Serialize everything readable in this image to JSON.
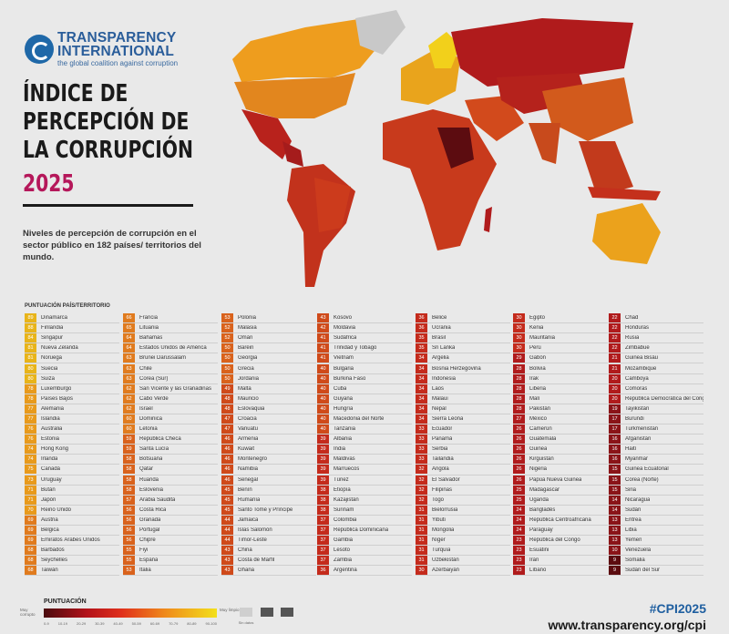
{
  "logo": {
    "line1": "TRANSPARENCY",
    "line2": "INTERNATIONAL",
    "tagline": "the global coalition against corruption"
  },
  "title": {
    "lines": [
      "ÍNDICE DE",
      "PERCEPCIÓN DE",
      "LA CORRUPCIÓN"
    ],
    "year": "2025"
  },
  "subtitle": "Niveles de percepción de corrupción en el sector público en 182 países/ territorios del mundo.",
  "table_header": "PUNTUACIÓN PAÍS/TERRITORIO",
  "columns": [
    [
      [
        89,
        "Dinamarca"
      ],
      [
        88,
        "Finlandia"
      ],
      [
        84,
        "Singapur"
      ],
      [
        81,
        "Nueva Zelanda"
      ],
      [
        81,
        "Noruega"
      ],
      [
        80,
        "Suecia"
      ],
      [
        80,
        "Suiza"
      ],
      [
        78,
        "Luxemburgo"
      ],
      [
        78,
        "Países Bajos"
      ],
      [
        77,
        "Alemania"
      ],
      [
        77,
        "Islandia"
      ],
      [
        76,
        "Australia"
      ],
      [
        76,
        "Estonia"
      ],
      [
        74,
        "Hong Kong"
      ],
      [
        74,
        "Irlanda"
      ],
      [
        75,
        "Canadá"
      ],
      [
        73,
        "Uruguay"
      ],
      [
        71,
        "Bután"
      ],
      [
        71,
        "Japón"
      ],
      [
        70,
        "Reino Unido"
      ],
      [
        69,
        "Austria"
      ],
      [
        69,
        "Bélgica"
      ],
      [
        69,
        "Emiratos Árabes Unidos"
      ],
      [
        68,
        "Barbados"
      ],
      [
        68,
        "Seychelles"
      ],
      [
        68,
        "Taiwán"
      ]
    ],
    [
      [
        66,
        "Francia"
      ],
      [
        65,
        "Lituania"
      ],
      [
        64,
        "Bahamas"
      ],
      [
        64,
        "Estados Unidos de América"
      ],
      [
        63,
        "Brunei Darussalam"
      ],
      [
        63,
        "Chile"
      ],
      [
        63,
        "Corea (Sur)"
      ],
      [
        62,
        "San Vicente y las Granadinas"
      ],
      [
        62,
        "Cabo Verde"
      ],
      [
        62,
        "Israel"
      ],
      [
        60,
        "Dominica"
      ],
      [
        60,
        "Letonia"
      ],
      [
        59,
        "República Checa"
      ],
      [
        59,
        "Santa Lucía"
      ],
      [
        58,
        "Botsuana"
      ],
      [
        58,
        "Qatar"
      ],
      [
        58,
        "Ruanda"
      ],
      [
        58,
        "Eslovenia"
      ],
      [
        57,
        "Arabia Saudita"
      ],
      [
        56,
        "Costa Rica"
      ],
      [
        56,
        "Granada"
      ],
      [
        56,
        "Portugal"
      ],
      [
        56,
        "Chipre"
      ],
      [
        55,
        "Fiyi"
      ],
      [
        55,
        "España"
      ],
      [
        53,
        "Italia"
      ]
    ],
    [
      [
        53,
        "Polonia"
      ],
      [
        52,
        "Malasia"
      ],
      [
        52,
        "Omán"
      ],
      [
        50,
        "Baréin"
      ],
      [
        50,
        "Georgia"
      ],
      [
        50,
        "Grecia"
      ],
      [
        50,
        "Jordania"
      ],
      [
        49,
        "Malta"
      ],
      [
        48,
        "Mauricio"
      ],
      [
        48,
        "Eslovaquia"
      ],
      [
        47,
        "Croacia"
      ],
      [
        47,
        "Vanuatu"
      ],
      [
        46,
        "Armenia"
      ],
      [
        46,
        "Kuwait"
      ],
      [
        46,
        "Montenegro"
      ],
      [
        46,
        "Namibia"
      ],
      [
        46,
        "Senegal"
      ],
      [
        45,
        "Benín"
      ],
      [
        45,
        "Rumanía"
      ],
      [
        45,
        "Santo Tomé y Príncipe"
      ],
      [
        44,
        "Jamaica"
      ],
      [
        44,
        "Islas Salomón"
      ],
      [
        44,
        "Timor-Leste"
      ],
      [
        43,
        "China"
      ],
      [
        43,
        "Costa de Marfil"
      ],
      [
        43,
        "Ghana"
      ]
    ],
    [
      [
        43,
        "Kosovo"
      ],
      [
        42,
        "Moldavia"
      ],
      [
        41,
        "Sudáfrica"
      ],
      [
        41,
        "Trinidad y Tobago"
      ],
      [
        41,
        "Vietnam"
      ],
      [
        40,
        "Bulgaria"
      ],
      [
        40,
        "Burkina Faso"
      ],
      [
        40,
        "Cuba"
      ],
      [
        40,
        "Guyana"
      ],
      [
        40,
        "Hungría"
      ],
      [
        40,
        "Macedonia del Norte"
      ],
      [
        40,
        "Tanzania"
      ],
      [
        39,
        "Albania"
      ],
      [
        39,
        "India"
      ],
      [
        39,
        "Maldivas"
      ],
      [
        39,
        "Marruecos"
      ],
      [
        39,
        "Túnez"
      ],
      [
        38,
        "Etiopía"
      ],
      [
        38,
        "Kazajistán"
      ],
      [
        38,
        "Surinam"
      ],
      [
        37,
        "Colombia"
      ],
      [
        37,
        "República Dominicana"
      ],
      [
        37,
        "Gambia"
      ],
      [
        37,
        "Lesoto"
      ],
      [
        37,
        "Zambia"
      ],
      [
        36,
        "Argentina"
      ]
    ],
    [
      [
        36,
        "Belice"
      ],
      [
        36,
        "Ucrania"
      ],
      [
        35,
        "Brasil"
      ],
      [
        35,
        "Sri Lanka"
      ],
      [
        34,
        "Argelia"
      ],
      [
        34,
        "Bosnia Herzegovina"
      ],
      [
        34,
        "Indonesia"
      ],
      [
        34,
        "Laos"
      ],
      [
        34,
        "Malaui"
      ],
      [
        34,
        "Nepal"
      ],
      [
        34,
        "Sierra Leona"
      ],
      [
        33,
        "Ecuador"
      ],
      [
        33,
        "Panamá"
      ],
      [
        33,
        "Serbia"
      ],
      [
        33,
        "Tailandia"
      ],
      [
        32,
        "Angola"
      ],
      [
        32,
        "El Salvador"
      ],
      [
        32,
        "Filipinas"
      ],
      [
        32,
        "Togo"
      ],
      [
        31,
        "Bielorrusia"
      ],
      [
        31,
        "Yibuti"
      ],
      [
        31,
        "Mongolia"
      ],
      [
        31,
        "Níger"
      ],
      [
        31,
        "Turquía"
      ],
      [
        31,
        "Uzbekistán"
      ],
      [
        30,
        "Azerbaiyán"
      ]
    ],
    [
      [
        30,
        "Egipto"
      ],
      [
        30,
        "Kenia"
      ],
      [
        30,
        "Mauritania"
      ],
      [
        30,
        "Perú"
      ],
      [
        29,
        "Gabón"
      ],
      [
        28,
        "Bolivia"
      ],
      [
        28,
        "Irak"
      ],
      [
        28,
        "Liberia"
      ],
      [
        28,
        "Malí"
      ],
      [
        28,
        "Pakistán"
      ],
      [
        27,
        "México"
      ],
      [
        26,
        "Camerún"
      ],
      [
        26,
        "Guatemala"
      ],
      [
        26,
        "Guinea"
      ],
      [
        26,
        "Kirguistán"
      ],
      [
        26,
        "Nigeria"
      ],
      [
        26,
        "Papúa Nueva Guinea"
      ],
      [
        25,
        "Madagascar"
      ],
      [
        25,
        "Uganda"
      ],
      [
        24,
        "Bangladés"
      ],
      [
        24,
        "República Centroafricana"
      ],
      [
        24,
        "Paraguay"
      ],
      [
        23,
        "República del Congo"
      ],
      [
        23,
        "Esuatini"
      ],
      [
        23,
        "Irán"
      ],
      [
        23,
        "Líbano"
      ]
    ],
    [
      [
        22,
        "Chad"
      ],
      [
        22,
        "Honduras"
      ],
      [
        22,
        "Rusia"
      ],
      [
        22,
        "Zimbabue"
      ],
      [
        21,
        "Guinea Bisáu"
      ],
      [
        21,
        "Mozambique"
      ],
      [
        20,
        "Camboya"
      ],
      [
        20,
        "Comoras"
      ],
      [
        20,
        "República Democrática del Congo"
      ],
      [
        19,
        "Tayikistán"
      ],
      [
        17,
        "Burundi"
      ],
      [
        17,
        "Turkmenistán"
      ],
      [
        16,
        "Afganistán"
      ],
      [
        16,
        "Haití"
      ],
      [
        16,
        "Myanmar"
      ],
      [
        15,
        "Guinea Ecuatorial"
      ],
      [
        15,
        "Corea (Norte)"
      ],
      [
        15,
        "Siria"
      ],
      [
        14,
        "Nicaragua"
      ],
      [
        14,
        "Sudán"
      ],
      [
        13,
        "Eritrea"
      ],
      [
        13,
        "Libia"
      ],
      [
        13,
        "Yemen"
      ],
      [
        10,
        "Venezuela"
      ],
      [
        9,
        "Somalia"
      ],
      [
        9,
        "Sudán del Sur"
      ]
    ]
  ],
  "score_colors": [
    "#5c0c10",
    "#8a1418",
    "#b01b1c",
    "#c42b1c",
    "#cf4a1a",
    "#d9621c",
    "#e07b1e",
    "#e89a1c",
    "#e8b41a",
    "#f2d21b"
  ],
  "legend": {
    "title": "PUNTUACIÓN",
    "left_label": "Muy corrupto",
    "right_label": "Muy limpio",
    "ticks": [
      "0-9",
      "10-19",
      "20-29",
      "30-39",
      "40-49",
      "50-59",
      "60-69",
      "70-79",
      "80-89",
      "90-100"
    ],
    "no_data": [
      "Sin datos",
      "",
      ""
    ]
  },
  "hashtag": "#CPI2025",
  "url": "www.transparency.org/cpi"
}
